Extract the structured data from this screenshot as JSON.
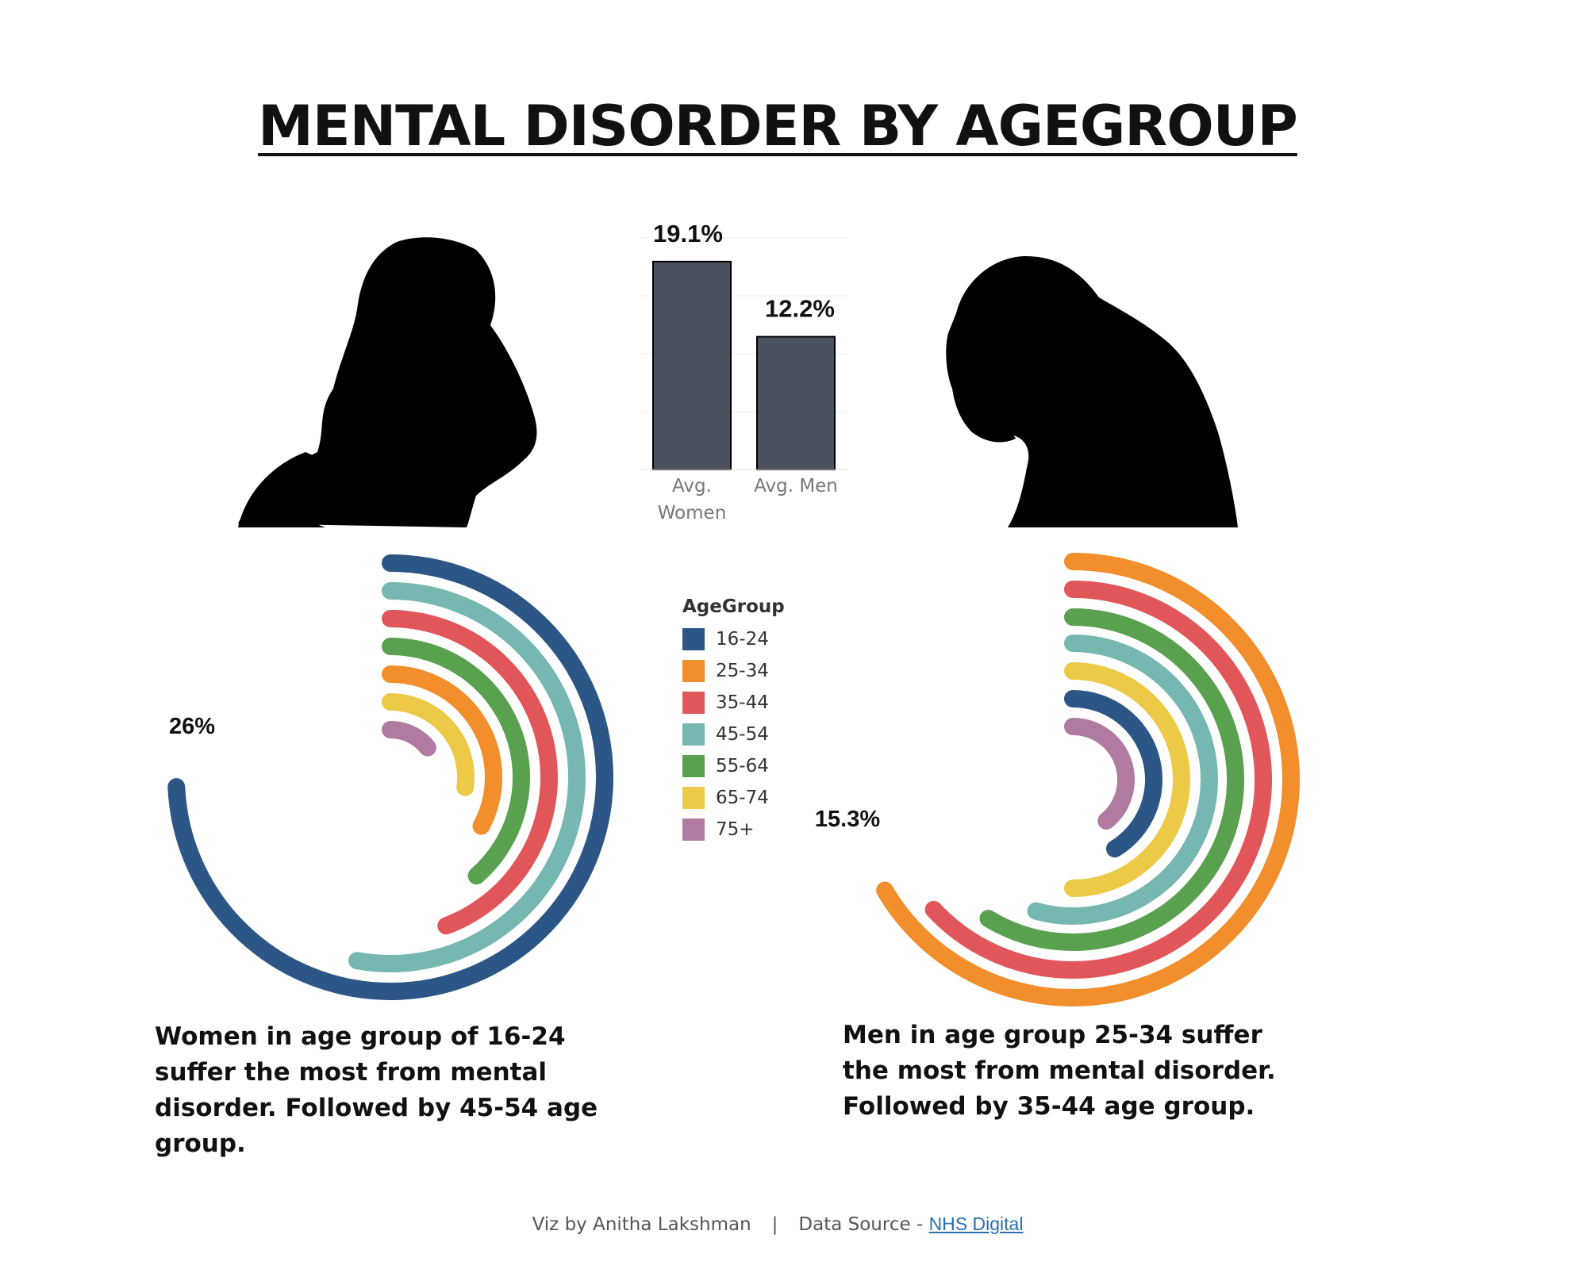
{
  "title": "MENTAL DISORDER BY AGEGROUP",
  "captions": {
    "women": "Women in age group of 16-24 suffer the most from mental disorder. Followed by 45-54 age group.",
    "men": "Men in age group 25-34 suffer the most from mental disorder. Followed by 35-44 age group."
  },
  "footer": {
    "viz_by": "Viz by Anitha Lakshman",
    "separator": "|",
    "source_prefix": "Data Source - ",
    "source_link": "NHS Digital"
  },
  "images": {
    "women_silhouette": "woman-holding-head-silhouette",
    "men_silhouette": "man-holding-head-silhouette"
  },
  "legend": {
    "title": "AgeGroup",
    "items": [
      {
        "label": "16-24",
        "color": "#2c5685"
      },
      {
        "label": "25-34",
        "color": "#f28e2b"
      },
      {
        "label": "35-44",
        "color": "#e15759"
      },
      {
        "label": "45-54",
        "color": "#76b7b2"
      },
      {
        "label": "55-64",
        "color": "#59a14f"
      },
      {
        "label": "65-74",
        "color": "#edc948"
      },
      {
        "label": "75+",
        "color": "#b07aa1"
      }
    ]
  },
  "chart_data": [
    {
      "type": "bar",
      "categories": [
        "Avg. Women",
        "Avg. Men"
      ],
      "values": [
        19.1,
        12.2
      ],
      "value_labels": [
        "19.1%",
        "12.2%"
      ],
      "bar_color": "#4a5260",
      "ylim": [
        0,
        20
      ],
      "grid": true
    },
    {
      "type": "radial-bar",
      "name": "Women",
      "unit": "%",
      "categories": [
        "16-24",
        "45-54",
        "35-44",
        "55-64",
        "25-34",
        "65-74",
        "75+"
      ],
      "values": [
        26,
        18.5,
        15.5,
        13.5,
        11.5,
        9.5,
        5
      ],
      "max": 35,
      "annotation": "26%"
    },
    {
      "type": "radial-bar",
      "name": "Men",
      "unit": "%",
      "categories": [
        "25-34",
        "35-44",
        "55-64",
        "45-54",
        "65-74",
        "16-24",
        "75+"
      ],
      "values": [
        15.3,
        14.5,
        13.5,
        12.5,
        11.5,
        9.5,
        9
      ],
      "max": 23,
      "annotation": "15.3%"
    }
  ]
}
